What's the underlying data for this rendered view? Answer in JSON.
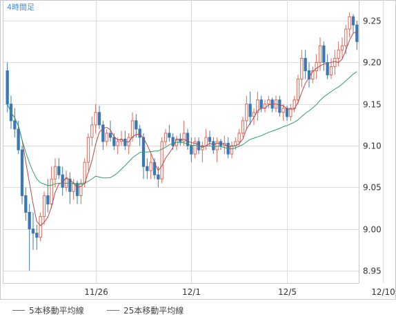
{
  "chart_data": {
    "type": "candlestick",
    "timeframe_label": "4時間足",
    "ylim": [
      8.935,
      9.275
    ],
    "y_ticks": [
      {
        "value": 8.95,
        "label": "8.95"
      },
      {
        "value": 9.0,
        "label": "9.00"
      },
      {
        "value": 9.05,
        "label": "9.05"
      },
      {
        "value": 9.1,
        "label": "9.10"
      },
      {
        "value": 9.15,
        "label": "9.15"
      },
      {
        "value": 9.2,
        "label": "9.20"
      },
      {
        "value": 9.25,
        "label": "9.25"
      }
    ],
    "x_ticks": [
      {
        "index": 24,
        "label": "11/26"
      },
      {
        "index": 50,
        "label": "12/1"
      },
      {
        "index": 76,
        "label": "12/5"
      },
      {
        "index": 102,
        "label": "12/10"
      }
    ],
    "grid": true,
    "legend_position": "bottom-left",
    "colors": {
      "up": "#d26a5a",
      "down": "#3b78b4",
      "ma5": "#b2474f",
      "ma25": "#2f9e68",
      "grid": "#dcdcdc"
    },
    "series": [
      {
        "name": "5本移動平均線",
        "color": "#b2474f",
        "key": "ma5"
      },
      {
        "name": "25本移動平均線",
        "color": "#2f9e68",
        "key": "ma25"
      }
    ],
    "candles": [
      [
        9.19,
        9.2,
        9.14,
        9.15
      ],
      [
        9.15,
        9.16,
        9.12,
        9.13
      ],
      [
        9.13,
        9.145,
        9.11,
        9.12
      ],
      [
        9.12,
        9.13,
        9.09,
        9.095
      ],
      [
        9.095,
        9.1,
        9.03,
        9.04
      ],
      [
        9.04,
        9.05,
        9.01,
        9.02
      ],
      [
        9.02,
        9.03,
        8.95,
        9.0
      ],
      [
        9.0,
        9.02,
        8.975,
        8.995
      ],
      [
        8.995,
        9.005,
        8.975,
        8.99
      ],
      [
        8.99,
        9.02,
        8.985,
        9.015
      ],
      [
        9.015,
        9.045,
        9.005,
        9.04
      ],
      [
        9.04,
        9.06,
        9.02,
        9.03
      ],
      [
        9.03,
        9.075,
        9.025,
        9.06
      ],
      [
        9.06,
        9.085,
        9.05,
        9.075
      ],
      [
        9.075,
        9.085,
        9.06,
        9.065
      ],
      [
        9.065,
        9.075,
        9.04,
        9.05
      ],
      [
        9.05,
        9.07,
        9.045,
        9.06
      ],
      [
        9.06,
        9.068,
        9.03,
        9.045
      ],
      [
        9.045,
        9.06,
        9.035,
        9.055
      ],
      [
        9.055,
        9.058,
        9.03,
        9.04
      ],
      [
        9.04,
        9.06,
        9.03,
        9.055
      ],
      [
        9.055,
        9.085,
        9.05,
        9.08
      ],
      [
        9.08,
        9.115,
        9.07,
        9.11
      ],
      [
        9.11,
        9.135,
        9.1,
        9.125
      ],
      [
        9.125,
        9.15,
        9.115,
        9.14
      ],
      [
        9.14,
        9.148,
        9.12,
        9.125
      ],
      [
        9.125,
        9.13,
        9.095,
        9.105
      ],
      [
        9.105,
        9.12,
        9.1,
        9.115
      ],
      [
        9.115,
        9.13,
        9.105,
        9.11
      ],
      [
        9.11,
        9.115,
        9.095,
        9.1
      ],
      [
        9.1,
        9.11,
        9.09,
        9.105
      ],
      [
        9.105,
        9.118,
        9.1,
        9.108
      ],
      [
        9.108,
        9.118,
        9.095,
        9.1
      ],
      [
        9.1,
        9.115,
        9.09,
        9.11
      ],
      [
        9.11,
        9.14,
        9.105,
        9.13
      ],
      [
        9.13,
        9.138,
        9.11,
        9.12
      ],
      [
        9.12,
        9.125,
        9.1,
        9.11
      ],
      [
        9.11,
        9.115,
        9.06,
        9.075
      ],
      [
        9.075,
        9.085,
        9.06,
        9.07
      ],
      [
        9.07,
        9.09,
        9.06,
        9.08
      ],
      [
        9.08,
        9.085,
        9.06,
        9.065
      ],
      [
        9.065,
        9.075,
        9.05,
        9.06
      ],
      [
        9.06,
        9.11,
        9.055,
        9.105
      ],
      [
        9.105,
        9.12,
        9.1,
        9.115
      ],
      [
        9.115,
        9.125,
        9.105,
        9.11
      ],
      [
        9.11,
        9.115,
        9.095,
        9.1
      ],
      [
        9.1,
        9.112,
        9.095,
        9.108
      ],
      [
        9.108,
        9.115,
        9.1,
        9.105
      ],
      [
        9.105,
        9.13,
        9.1,
        9.115
      ],
      [
        9.115,
        9.12,
        9.095,
        9.1
      ],
      [
        9.1,
        9.11,
        9.08,
        9.09
      ],
      [
        9.09,
        9.11,
        9.085,
        9.105
      ],
      [
        9.105,
        9.11,
        9.09,
        9.095
      ],
      [
        9.095,
        9.105,
        9.08,
        9.1
      ],
      [
        9.1,
        9.12,
        9.095,
        9.11
      ],
      [
        9.11,
        9.118,
        9.1,
        9.105
      ],
      [
        9.105,
        9.11,
        9.09,
        9.095
      ],
      [
        9.095,
        9.11,
        9.08,
        9.105
      ],
      [
        9.105,
        9.108,
        9.095,
        9.1
      ],
      [
        9.1,
        9.112,
        9.09,
        9.103
      ],
      [
        9.103,
        9.11,
        9.085,
        9.09
      ],
      [
        9.09,
        9.105,
        9.085,
        9.1
      ],
      [
        9.1,
        9.11,
        9.095,
        9.105
      ],
      [
        9.105,
        9.12,
        9.1,
        9.115
      ],
      [
        9.115,
        9.135,
        9.11,
        9.13
      ],
      [
        9.13,
        9.16,
        9.12,
        9.15
      ],
      [
        9.15,
        9.165,
        9.125,
        9.135
      ],
      [
        9.135,
        9.145,
        9.125,
        9.14
      ],
      [
        9.14,
        9.165,
        9.13,
        9.155
      ],
      [
        9.155,
        9.16,
        9.14,
        9.145
      ],
      [
        9.145,
        9.155,
        9.14,
        9.15
      ],
      [
        9.15,
        9.16,
        9.145,
        9.155
      ],
      [
        9.155,
        9.158,
        9.14,
        9.145
      ],
      [
        9.145,
        9.16,
        9.14,
        9.155
      ],
      [
        9.155,
        9.16,
        9.135,
        9.14
      ],
      [
        9.14,
        9.15,
        9.13,
        9.145
      ],
      [
        9.145,
        9.148,
        9.13,
        9.135
      ],
      [
        9.135,
        9.15,
        9.13,
        9.145
      ],
      [
        9.145,
        9.16,
        9.14,
        9.155
      ],
      [
        9.155,
        9.185,
        9.15,
        9.18
      ],
      [
        9.18,
        9.215,
        9.17,
        9.205
      ],
      [
        9.205,
        9.215,
        9.18,
        9.19
      ],
      [
        9.19,
        9.2,
        9.17,
        9.18
      ],
      [
        9.18,
        9.195,
        9.175,
        9.19
      ],
      [
        9.19,
        9.21,
        9.18,
        9.2
      ],
      [
        9.2,
        9.23,
        9.19,
        9.22
      ],
      [
        9.22,
        9.225,
        9.19,
        9.2
      ],
      [
        9.2,
        9.21,
        9.18,
        9.185
      ],
      [
        9.185,
        9.205,
        9.18,
        9.195
      ],
      [
        9.195,
        9.215,
        9.185,
        9.205
      ],
      [
        9.205,
        9.225,
        9.195,
        9.215
      ],
      [
        9.215,
        9.23,
        9.205,
        9.22
      ],
      [
        9.22,
        9.245,
        9.21,
        9.24
      ],
      [
        9.24,
        9.26,
        9.23,
        9.255
      ],
      [
        9.255,
        9.258,
        9.235,
        9.245
      ],
      [
        9.245,
        9.25,
        9.215,
        9.225
      ]
    ]
  },
  "legend": {
    "ma5_label": "5本移動平均線",
    "ma25_label": "25本移動平均線"
  }
}
